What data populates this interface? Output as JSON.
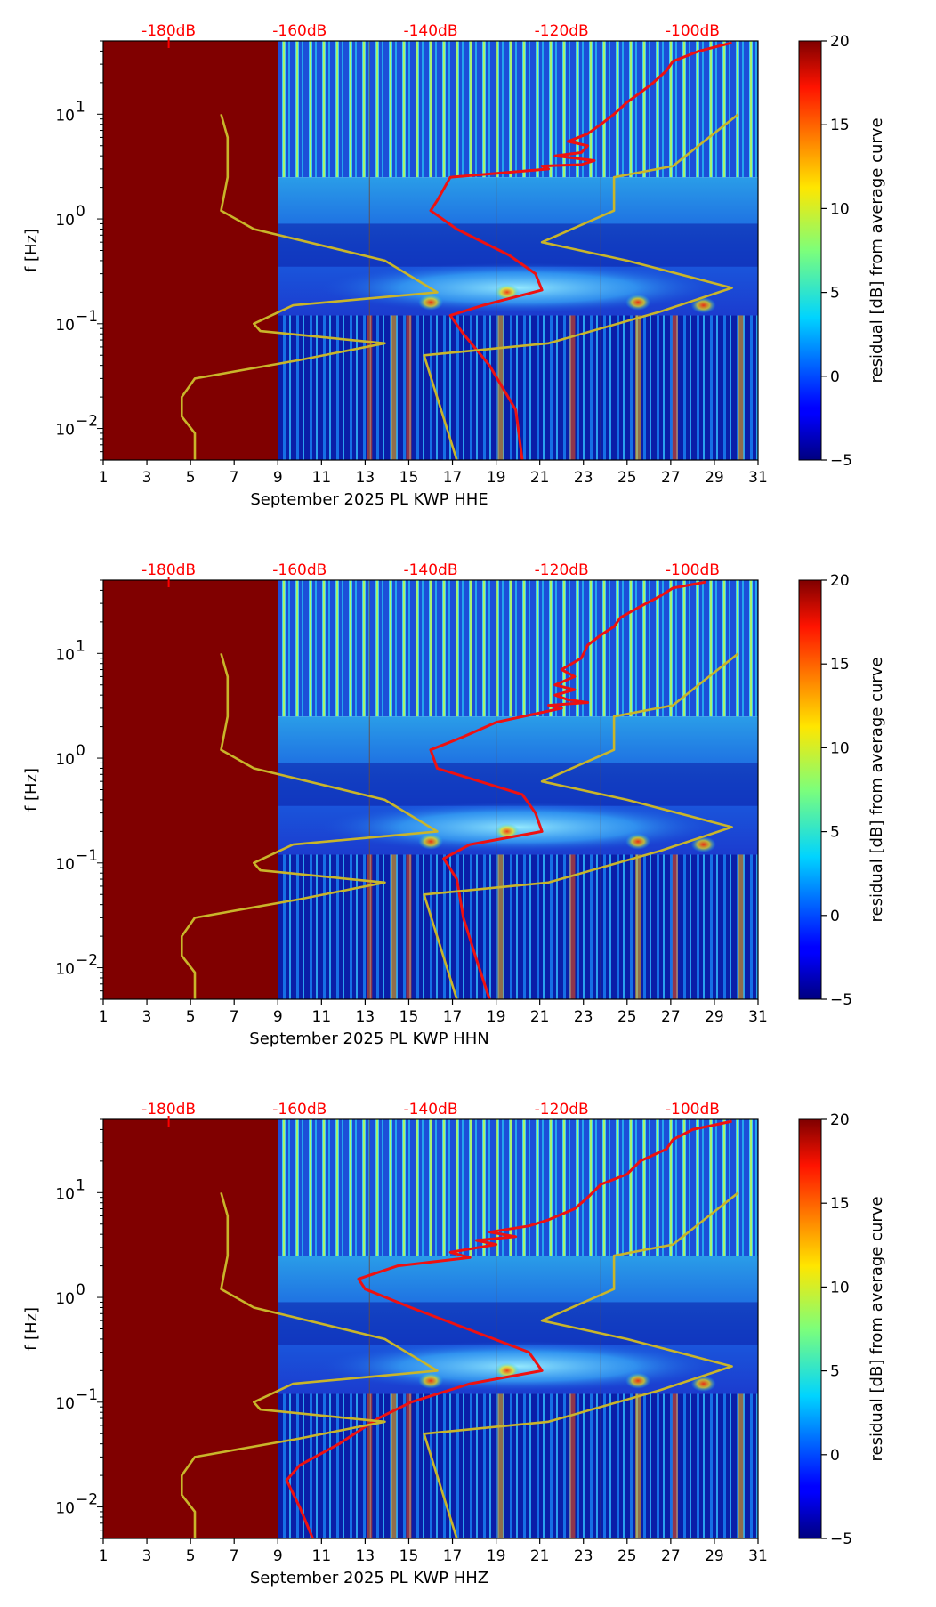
{
  "figure": {
    "colorbar_label": "residual [dB] from average curve",
    "colorbar_ticks": [
      "20",
      "15",
      "10",
      "5",
      "0",
      "−5"
    ],
    "colorbar_range": [
      -5,
      20
    ],
    "x_ticks": [
      "1",
      "3",
      "5",
      "7",
      "9",
      "11",
      "13",
      "15",
      "17",
      "19",
      "21",
      "23",
      "25",
      "27",
      "29",
      "31"
    ],
    "top_ticks": [
      "-180dB",
      "-160dB",
      "-140dB",
      "-120dB",
      "-100dB"
    ],
    "y_label": "f [Hz]",
    "colors": {
      "red_curve": "#ee1111",
      "yellow_curve": "#c9b52a",
      "no_data": "#800000",
      "top_labels": "#ff0000"
    }
  },
  "chart_data": [
    {
      "type": "heatmap",
      "title": "",
      "xlabel": "September 2025 PL KWP  HHE",
      "ylabel": "f [Hz]",
      "xlim": [
        1,
        31
      ],
      "ylim": [
        0.005,
        50
      ],
      "yscale": "log",
      "y_tick_labels": [
        "10^1",
        "10^0",
        "10^-1",
        "10^-2"
      ],
      "no_data_until_day": 9,
      "series": [
        {
          "name": "median PSD (top axis, dB)",
          "color": "#ee1111",
          "x_db": [
            -94,
            -99,
            -103,
            -104,
            -106,
            -108,
            -110,
            -112,
            -114,
            -116,
            -119,
            -116,
            -117,
            -121,
            -115,
            -117,
            -123,
            -122,
            -137,
            -139,
            -140,
            -136,
            -128,
            -124,
            -123,
            -132,
            -137,
            -135,
            -131,
            -127,
            -126
          ],
          "f_hz": [
            48,
            40,
            32,
            26,
            20,
            16,
            13,
            10,
            8,
            6.5,
            5.5,
            5,
            4.3,
            4,
            3.6,
            3.3,
            3.2,
            3,
            2.5,
            1.5,
            1.2,
            0.8,
            0.45,
            0.3,
            0.21,
            0.15,
            0.12,
            0.08,
            0.04,
            0.015,
            0.005
          ]
        },
        {
          "name": "noise model bound (top axis, dB)",
          "color": "#c9b52a",
          "x_db": [
            -172,
            -171,
            -171,
            -172,
            -167,
            -147,
            -139,
            -161,
            -167,
            -166,
            -147,
            -160,
            -176,
            -178,
            -178,
            -176,
            -176,
            -176
          ],
          "f_hz": [
            10,
            6,
            2.5,
            1.2,
            0.8,
            0.4,
            0.2,
            0.15,
            0.1,
            0.085,
            0.065,
            0.045,
            0.03,
            0.02,
            0.013,
            0.009,
            0.006,
            0.005
          ]
        },
        {
          "name": "noise model bound (top axis, dB)",
          "color": "#c9b52a",
          "x_db": [
            -93,
            -100,
            -103,
            -112,
            -112,
            -123,
            -110,
            -94,
            -105,
            -122,
            -141,
            -136
          ],
          "f_hz": [
            10,
            4.5,
            3.2,
            2.5,
            1.2,
            0.6,
            0.4,
            0.22,
            0.13,
            0.065,
            0.05,
            0.005
          ]
        }
      ]
    },
    {
      "type": "heatmap",
      "title": "",
      "xlabel": "September 2025 PL KWP  HHN",
      "ylabel": "f [Hz]",
      "xlim": [
        1,
        31
      ],
      "ylim": [
        0.005,
        50
      ],
      "yscale": "log",
      "y_tick_labels": [
        "10^1",
        "10^0",
        "10^-1",
        "10^-2"
      ],
      "no_data_until_day": 9,
      "series": [
        {
          "name": "median PSD (top axis, dB)",
          "color": "#ee1111",
          "x_db": [
            -98,
            -103,
            -105,
            -108,
            -111,
            -112,
            -114,
            -116,
            -117,
            -120,
            -118,
            -121,
            -118,
            -121,
            -119,
            -116,
            -122,
            -120,
            -130,
            -135,
            -140,
            -139,
            -126,
            -124,
            -123,
            -134,
            -138,
            -136,
            -135,
            -133,
            -131
          ],
          "f_hz": [
            48,
            42,
            35,
            28,
            22,
            18,
            15,
            12,
            9,
            7,
            6,
            5,
            4.5,
            4,
            3.6,
            3.4,
            3.2,
            3,
            2.2,
            1.6,
            1.2,
            0.8,
            0.45,
            0.3,
            0.2,
            0.15,
            0.11,
            0.07,
            0.03,
            0.012,
            0.005
          ]
        },
        {
          "name": "noise model bound (top axis, dB)",
          "color": "#c9b52a",
          "x_db": [
            -172,
            -171,
            -171,
            -172,
            -167,
            -147,
            -139,
            -161,
            -167,
            -166,
            -147,
            -160,
            -176,
            -178,
            -178,
            -176,
            -176,
            -176
          ],
          "f_hz": [
            10,
            6,
            2.5,
            1.2,
            0.8,
            0.4,
            0.2,
            0.15,
            0.1,
            0.085,
            0.065,
            0.045,
            0.03,
            0.02,
            0.013,
            0.009,
            0.006,
            0.005
          ]
        },
        {
          "name": "noise model bound (top axis, dB)",
          "color": "#c9b52a",
          "x_db": [
            -93,
            -100,
            -103,
            -112,
            -112,
            -123,
            -110,
            -94,
            -105,
            -122,
            -141,
            -136
          ],
          "f_hz": [
            10,
            4.5,
            3.2,
            2.5,
            1.2,
            0.6,
            0.4,
            0.22,
            0.13,
            0.065,
            0.05,
            0.005
          ]
        }
      ]
    },
    {
      "type": "heatmap",
      "title": "",
      "xlabel": "September 2025 PL KWP  HHZ",
      "ylabel": "f [Hz]",
      "xlim": [
        1,
        31
      ],
      "ylim": [
        0.005,
        50
      ],
      "yscale": "log",
      "y_tick_labels": [
        "10^1",
        "10^0",
        "10^-1",
        "10^-2"
      ],
      "no_data_until_day": 9,
      "series": [
        {
          "name": "median PSD (top axis, dB)",
          "color": "#ee1111",
          "x_db": [
            -94,
            -100,
            -103,
            -104,
            -108,
            -110,
            -114,
            -116,
            -118,
            -122,
            -125,
            -131,
            -127,
            -133,
            -130,
            -137,
            -134,
            -145,
            -151,
            -150,
            -143,
            -125,
            -123,
            -134,
            -143,
            -148,
            -154,
            -160,
            -162,
            -160,
            -158
          ],
          "f_hz": [
            48,
            40,
            32,
            26,
            20,
            15,
            12,
            9,
            7,
            5.5,
            4.8,
            4.2,
            3.8,
            3.5,
            3.2,
            2.7,
            2.4,
            2,
            1.5,
            1.2,
            0.8,
            0.3,
            0.2,
            0.15,
            0.1,
            0.07,
            0.04,
            0.025,
            0.018,
            0.01,
            0.005
          ]
        },
        {
          "name": "noise model bound (top axis, dB)",
          "color": "#c9b52a",
          "x_db": [
            -172,
            -171,
            -171,
            -172,
            -167,
            -147,
            -139,
            -161,
            -167,
            -166,
            -147,
            -160,
            -176,
            -178,
            -178,
            -176,
            -176,
            -176
          ],
          "f_hz": [
            10,
            6,
            2.5,
            1.2,
            0.8,
            0.4,
            0.2,
            0.15,
            0.1,
            0.085,
            0.065,
            0.045,
            0.03,
            0.02,
            0.013,
            0.009,
            0.006,
            0.005
          ]
        },
        {
          "name": "noise model bound (top axis, dB)",
          "color": "#c9b52a",
          "x_db": [
            -93,
            -100,
            -103,
            -112,
            -112,
            -123,
            -110,
            -94,
            -105,
            -122,
            -141,
            -136
          ],
          "f_hz": [
            10,
            4.5,
            3.2,
            2.5,
            1.2,
            0.6,
            0.4,
            0.22,
            0.13,
            0.065,
            0.05,
            0.005
          ]
        }
      ]
    }
  ]
}
